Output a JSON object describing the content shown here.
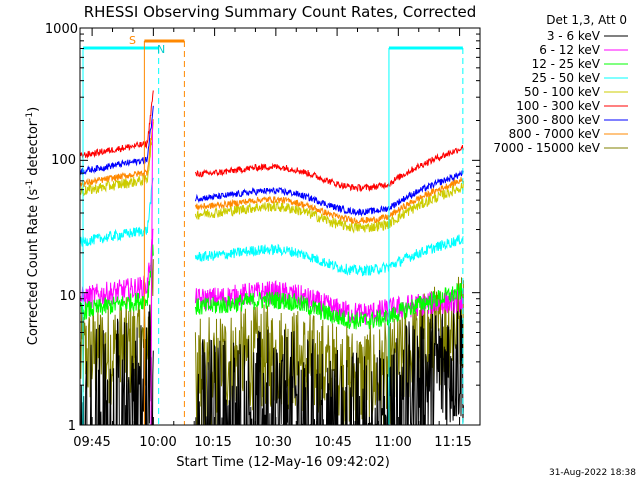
{
  "chart_data": {
    "type": "line",
    "title": "RHESSI Observing Summary Count Rates, Corrected",
    "xlabel": "Start Time (12-May-16 09:42:02)",
    "ylabel_main": "Corrected Count Rate (s",
    "ylabel_sup1": "-1",
    "ylabel_mid": " detector",
    "ylabel_sup2": "-1",
    "ylabel_end": ")",
    "y_scale": "log",
    "ylim": [
      1,
      1000
    ],
    "xlim": [
      "09:42:02",
      "11:20:00"
    ],
    "y_ticks": [
      "1",
      "10",
      "100",
      "1000"
    ],
    "x_ticks": [
      "09:45",
      "10:00",
      "10:15",
      "10:30",
      "10:45",
      "11:00",
      "11:15"
    ],
    "legend_title": "Det 1,3, Att 0",
    "legend_position": "top-right",
    "footer_date": "31-Aug-2022 18:38",
    "markers": {
      "s_label": "S",
      "n_label": "N"
    },
    "series": [
      {
        "name": "3 - 6 keV",
        "color": "#000000",
        "start_level": 1.6,
        "end_level": 3.3,
        "gap_level": 1.3,
        "noise": 0.55
      },
      {
        "name": "6 - 12 keV",
        "color": "#ff00ff",
        "start_level": 9.0,
        "end_level": 8.5,
        "gap_level": 8.5,
        "noise": 0.09
      },
      {
        "name": "12 - 25 keV",
        "color": "#00ff00",
        "start_level": 7.2,
        "end_level": 10.0,
        "gap_level": 7.5,
        "noise": 0.07
      },
      {
        "name": "25 - 50 keV",
        "color": "#00ffff",
        "start_level": 24,
        "end_level": 25,
        "gap_level": 18,
        "noise": 0.04
      },
      {
        "name": "50 - 100 keV",
        "color": "#cccc00",
        "start_level": 58,
        "end_level": 62,
        "gap_level": 38,
        "noise": 0.04
      },
      {
        "name": "100 - 300 keV",
        "color": "#ff0000",
        "start_level": 108,
        "end_level": 122,
        "gap_level": 76,
        "noise": 0.025
      },
      {
        "name": "300 - 800 keV",
        "color": "#0000ff",
        "start_level": 82,
        "end_level": 78,
        "gap_level": 50,
        "noise": 0.025
      },
      {
        "name": "800 - 7000 keV",
        "color": "#ff8800",
        "start_level": 66,
        "end_level": 70,
        "gap_level": 43,
        "noise": 0.025
      },
      {
        "name": "7000 - 15000 keV",
        "color": "#808000",
        "start_level": 3.2,
        "end_level": 6.0,
        "gap_level": 2.8,
        "noise": 0.4
      }
    ]
  }
}
